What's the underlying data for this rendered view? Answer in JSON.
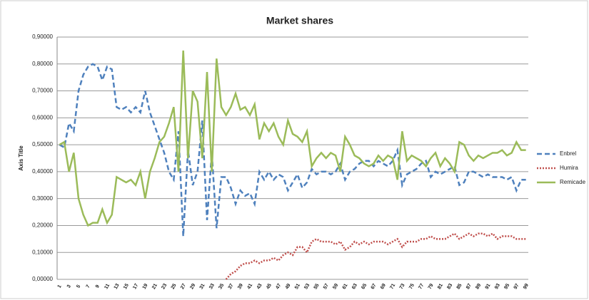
{
  "chart_data": {
    "type": "line",
    "title": "Market shares",
    "y_label": "Axis Title",
    "categories": [
      1,
      null,
      3,
      null,
      5,
      null,
      7,
      null,
      9,
      null,
      11,
      null,
      13,
      null,
      15,
      null,
      17,
      null,
      19,
      null,
      21,
      null,
      23,
      null,
      25,
      null,
      27,
      null,
      29,
      null,
      31,
      null,
      33,
      null,
      35,
      null,
      37,
      null,
      39,
      null,
      41,
      null,
      43,
      null,
      45,
      null,
      47,
      null,
      49,
      null,
      51,
      null,
      53,
      null,
      55,
      null,
      57,
      null,
      59,
      null,
      61,
      null,
      63,
      null,
      65,
      null,
      67,
      null,
      69,
      null,
      71,
      null,
      73,
      null,
      75,
      null,
      77,
      null,
      79,
      null,
      81,
      null,
      83,
      null,
      85,
      null,
      87,
      null,
      89,
      null,
      91,
      null,
      93,
      null,
      95,
      null,
      97,
      null,
      99
    ],
    "series": [
      {
        "name": "Enbrel",
        "color": "#4f81bd",
        "line_style": "dashed",
        "values": [
          0.5,
          0.49,
          0.58,
          0.55,
          0.7,
          0.76,
          0.79,
          0.8,
          0.79,
          0.74,
          0.79,
          0.78,
          0.64,
          0.63,
          0.64,
          0.62,
          0.64,
          0.62,
          0.7,
          0.62,
          0.57,
          0.52,
          0.47,
          0.4,
          0.37,
          0.55,
          0.16,
          0.48,
          0.35,
          0.4,
          0.59,
          0.22,
          0.47,
          0.19,
          0.38,
          0.38,
          0.34,
          0.28,
          0.33,
          0.31,
          0.32,
          0.28,
          0.4,
          0.37,
          0.4,
          0.37,
          0.39,
          0.38,
          0.33,
          0.36,
          0.39,
          0.34,
          0.36,
          0.41,
          0.39,
          0.4,
          0.4,
          0.39,
          0.4,
          0.43,
          0.37,
          0.4,
          0.41,
          0.43,
          0.44,
          0.44,
          0.42,
          0.44,
          0.43,
          0.42,
          0.44,
          0.48,
          0.35,
          0.39,
          0.4,
          0.41,
          0.43,
          0.44,
          0.38,
          0.4,
          0.39,
          0.4,
          0.41,
          0.42,
          0.35,
          0.36,
          0.4,
          0.4,
          0.39,
          0.38,
          0.39,
          0.38,
          0.38,
          0.38,
          0.37,
          0.38,
          0.33,
          0.37,
          0.37
        ]
      },
      {
        "name": "Humira",
        "color": "#c0504d",
        "line_style": "dotted",
        "values": [
          null,
          null,
          null,
          null,
          null,
          null,
          null,
          null,
          null,
          null,
          null,
          null,
          null,
          null,
          null,
          null,
          null,
          null,
          null,
          null,
          null,
          null,
          null,
          null,
          null,
          null,
          null,
          null,
          null,
          null,
          null,
          null,
          null,
          null,
          null,
          0.0,
          0.02,
          0.03,
          0.05,
          0.06,
          0.06,
          0.07,
          0.06,
          0.07,
          0.07,
          0.08,
          0.07,
          0.09,
          0.1,
          0.09,
          0.12,
          0.12,
          0.1,
          0.14,
          0.15,
          0.14,
          0.14,
          0.14,
          0.13,
          0.14,
          0.11,
          0.12,
          0.14,
          0.13,
          0.14,
          0.13,
          0.14,
          0.14,
          0.14,
          0.13,
          0.14,
          0.15,
          0.12,
          0.14,
          0.14,
          0.14,
          0.15,
          0.15,
          0.16,
          0.15,
          0.15,
          0.15,
          0.16,
          0.17,
          0.15,
          0.16,
          0.17,
          0.16,
          0.17,
          0.17,
          0.16,
          0.17,
          0.15,
          0.16,
          0.16,
          0.16,
          0.15,
          0.15,
          0.15
        ]
      },
      {
        "name": "Remicade",
        "color": "#9bbb59",
        "line_style": "solid",
        "values": [
          0.5,
          0.51,
          0.4,
          0.47,
          0.3,
          0.24,
          0.2,
          0.21,
          0.21,
          0.26,
          0.21,
          0.24,
          0.38,
          0.37,
          0.36,
          0.37,
          0.35,
          0.4,
          0.3,
          0.4,
          0.45,
          0.51,
          0.53,
          0.58,
          0.64,
          0.4,
          0.85,
          0.45,
          0.7,
          0.66,
          0.45,
          0.77,
          0.4,
          0.82,
          0.64,
          0.61,
          0.64,
          0.69,
          0.63,
          0.64,
          0.61,
          0.65,
          0.52,
          0.58,
          0.55,
          0.58,
          0.53,
          0.5,
          0.59,
          0.54,
          0.53,
          0.51,
          0.55,
          0.42,
          0.45,
          0.47,
          0.45,
          0.47,
          0.46,
          0.4,
          0.53,
          0.5,
          0.46,
          0.45,
          0.43,
          0.42,
          0.43,
          0.46,
          0.44,
          0.46,
          0.45,
          0.37,
          0.55,
          0.44,
          0.46,
          0.45,
          0.44,
          0.42,
          0.45,
          0.47,
          0.42,
          0.45,
          0.43,
          0.4,
          0.51,
          0.5,
          0.46,
          0.44,
          0.46,
          0.45,
          0.46,
          0.47,
          0.47,
          0.48,
          0.46,
          0.47,
          0.51,
          0.48,
          0.48
        ]
      }
    ],
    "ylim": [
      0,
      0.9
    ],
    "yticks": [
      {
        "value": 0,
        "label": "0,00000"
      },
      {
        "value": 0.1,
        "label": "0,10000"
      },
      {
        "value": 0.2,
        "label": "0,20000"
      },
      {
        "value": 0.3,
        "label": "0,30000"
      },
      {
        "value": 0.4,
        "label": "0,40000"
      },
      {
        "value": 0.5,
        "label": "0,50000"
      },
      {
        "value": 0.6,
        "label": "0,60000"
      },
      {
        "value": 0.7,
        "label": "0,70000"
      },
      {
        "value": 0.8,
        "label": "0,80000"
      },
      {
        "value": 0.9,
        "label": "0,90000"
      }
    ],
    "grid": true,
    "legend": "right"
  }
}
